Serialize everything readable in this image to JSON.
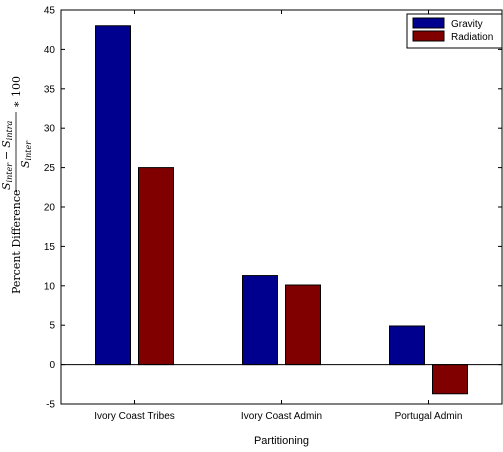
{
  "chart_data": {
    "type": "bar",
    "categories": [
      "Ivory Coast Tribes",
      "Ivory Coast Admin",
      "Portugal Admin"
    ],
    "series": [
      {
        "name": "Gravity",
        "color": "#00008f",
        "values": [
          43.0,
          11.3,
          4.9
        ]
      },
      {
        "name": "Radiation",
        "color": "#800000",
        "values": [
          25.0,
          10.1,
          -3.7
        ]
      }
    ],
    "title": "",
    "xlabel": "Partitioning",
    "ylabel": {
      "prefix": "Percent Difference",
      "num_a": "S",
      "num_a_sub": "inter",
      "minus": "−",
      "num_b": "S",
      "num_b_sub": "intra",
      "den": "S",
      "den_sub": "inter",
      "suffix": "∗ 100"
    },
    "ylim": [
      -5,
      45
    ],
    "yticks": [
      -5,
      0,
      5,
      10,
      15,
      20,
      25,
      30,
      35,
      40,
      45
    ],
    "grid": false,
    "legend": "top-right",
    "baseline": 0
  }
}
